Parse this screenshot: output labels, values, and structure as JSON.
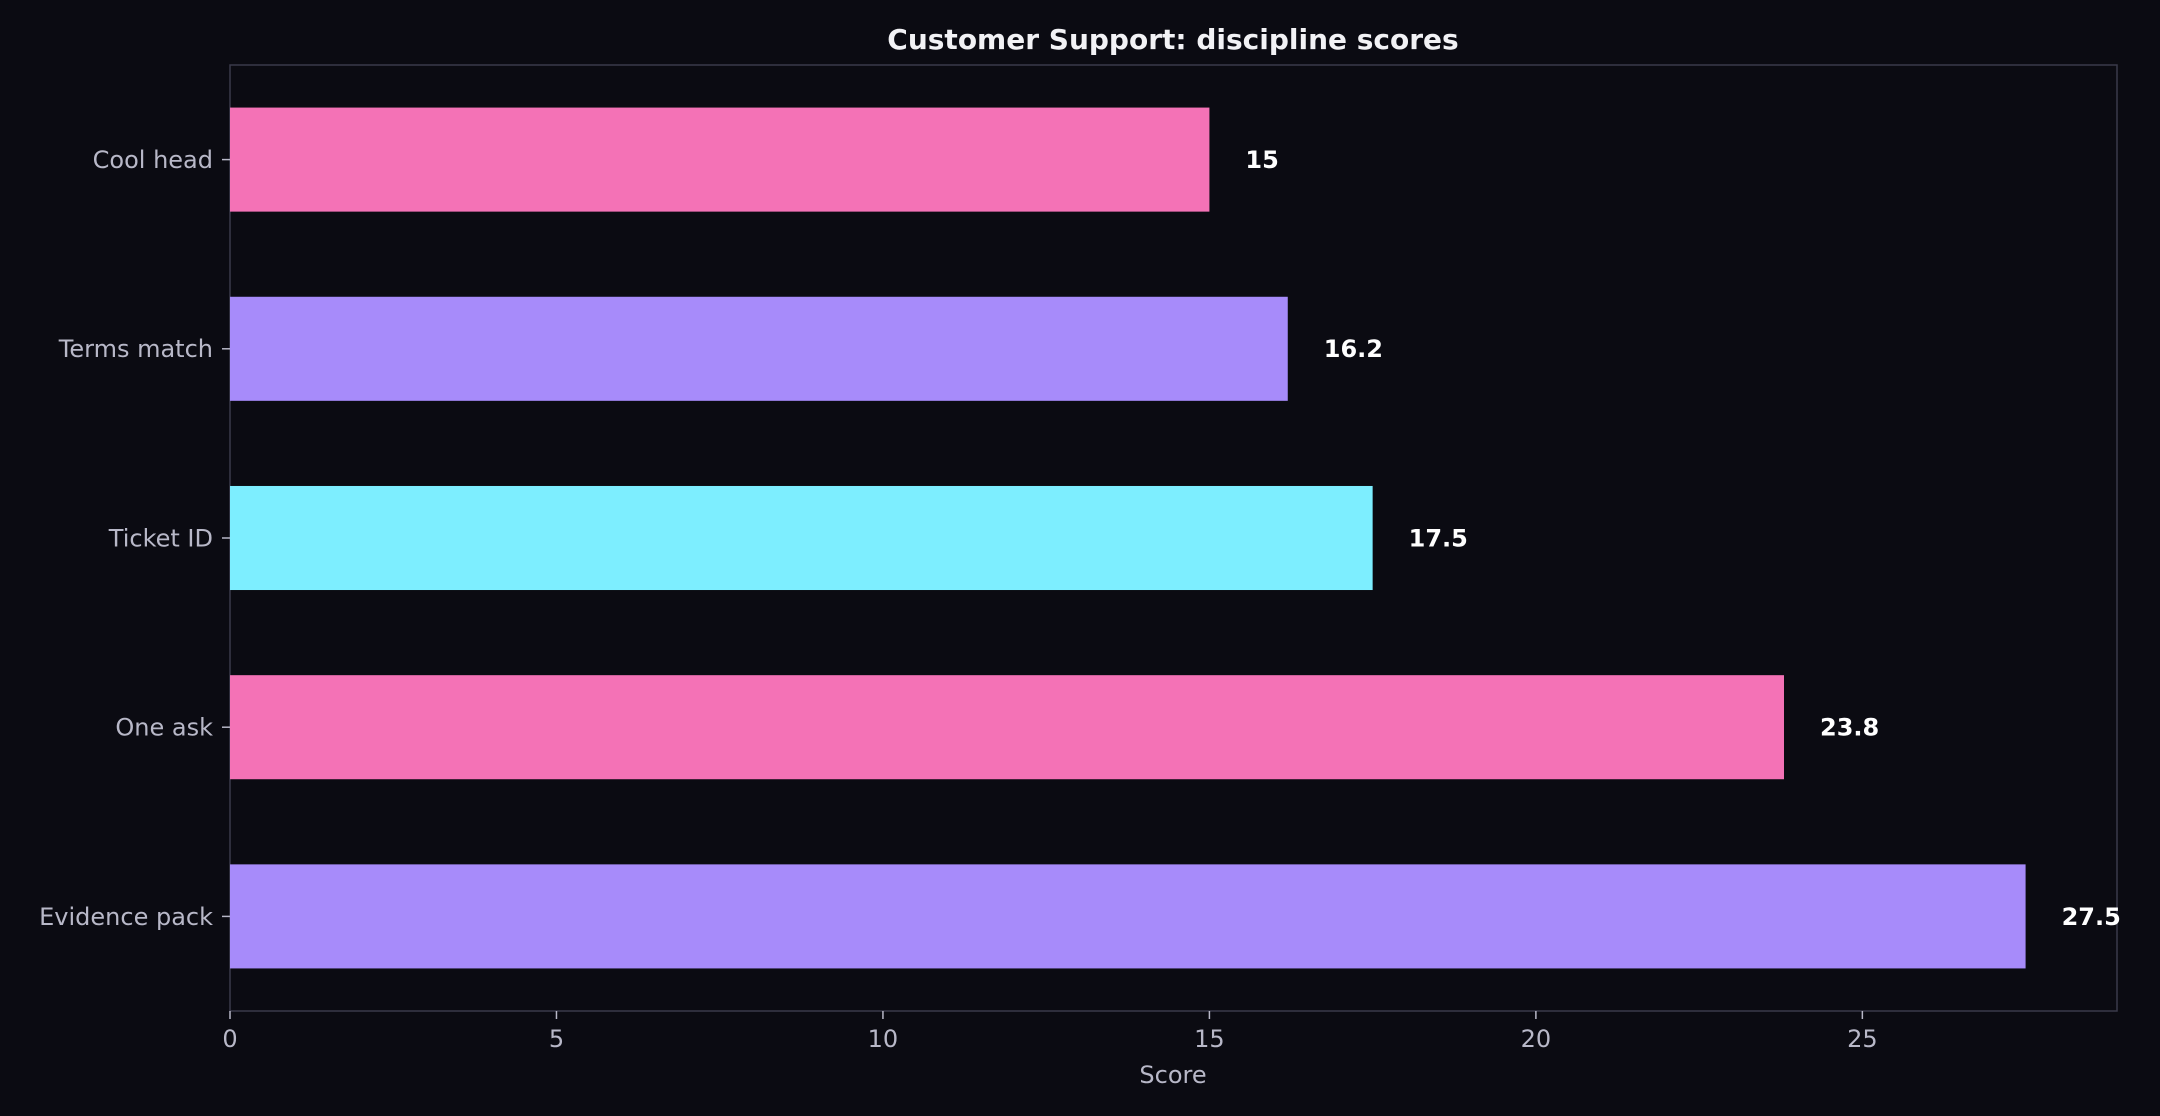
{
  "chart_data": {
    "type": "bar",
    "orientation": "horizontal",
    "title": "Customer Support: discipline scores",
    "xlabel": "Score",
    "ylabel": "",
    "xlim": [
      0,
      28.9
    ],
    "xticks": [
      0,
      5,
      10,
      15,
      20,
      25
    ],
    "grid": false,
    "categories": [
      "Cool head",
      "Terms match",
      "Ticket ID",
      "One ask",
      "Evidence pack"
    ],
    "values": [
      15,
      16.2,
      17.5,
      23.8,
      27.5
    ],
    "value_labels": [
      "15",
      "16.2",
      "17.5",
      "23.8",
      "27.5"
    ],
    "bar_colors": [
      "#f472b6",
      "#a78bfa",
      "#7deeff",
      "#f472b6",
      "#a78bfa"
    ]
  },
  "theme": {
    "background": "#0b0b12",
    "axis_color": "#3a3a4a",
    "tick_label_color": "#b8b8c8",
    "title_color": "#f2f2f5",
    "value_label_color": "#ffffff"
  }
}
